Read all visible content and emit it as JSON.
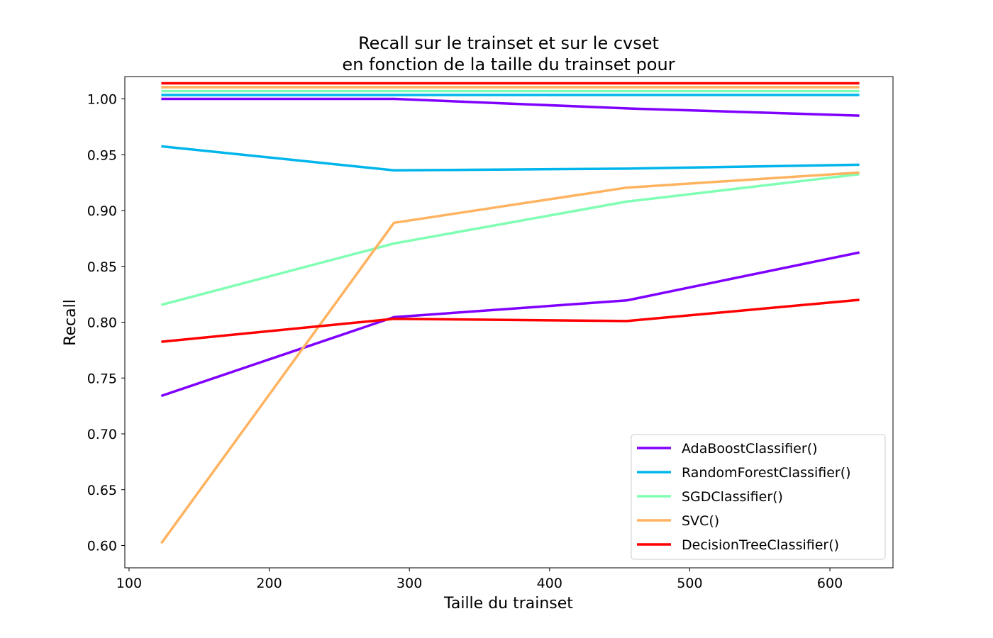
{
  "chart_data": {
    "type": "line",
    "title_line1": "Recall sur le trainset et sur le cvset",
    "title_line2": "en fonction de la taille du trainset pour",
    "xlabel": "Taille du trainset",
    "ylabel": "Recall",
    "xlim": [
      97,
      645
    ],
    "ylim": [
      0.58,
      1.02
    ],
    "xticks": [
      100,
      200,
      300,
      400,
      500,
      600
    ],
    "xtick_labels": [
      "100",
      "200",
      "300",
      "400",
      "500",
      "600"
    ],
    "yticks": [
      0.6,
      0.65,
      0.7,
      0.75,
      0.8,
      0.85,
      0.9,
      0.95,
      1.0
    ],
    "ytick_labels": [
      "0.60",
      "0.65",
      "0.70",
      "0.75",
      "0.80",
      "0.85",
      "0.90",
      "0.95",
      "1.00"
    ],
    "grid": false,
    "legend_position": "lower-right",
    "x": [
      123,
      289,
      455,
      621
    ],
    "series": [
      {
        "name": "AdaBoostClassifier()",
        "color": "#8000ff",
        "train": [
          1.0,
          1.0,
          0.9915,
          0.985
        ],
        "cv": [
          0.734,
          0.8045,
          0.8195,
          0.8625
        ]
      },
      {
        "name": "RandomForestClassifier()",
        "color": "#00b5eb",
        "train": [
          1.0035,
          1.0035,
          1.0035,
          1.0035
        ],
        "cv": [
          0.9575,
          0.936,
          0.9375,
          0.941
        ]
      },
      {
        "name": "SGDClassifier()",
        "color": "#80ffb4",
        "train": [
          1.007,
          1.007,
          1.007,
          1.007
        ],
        "cv": [
          0.8155,
          0.8705,
          0.908,
          0.9325
        ]
      },
      {
        "name": "SVC()",
        "color": "#ffb360",
        "train": [
          1.0105,
          1.0105,
          1.0105,
          1.0105
        ],
        "cv": [
          0.602,
          0.889,
          0.9205,
          0.934
        ]
      },
      {
        "name": "DecisionTreeClassifier()",
        "color": "#ff0000",
        "train": [
          1.014,
          1.014,
          1.014,
          1.014
        ],
        "cv": [
          0.7825,
          0.803,
          0.801,
          0.82
        ]
      }
    ]
  }
}
